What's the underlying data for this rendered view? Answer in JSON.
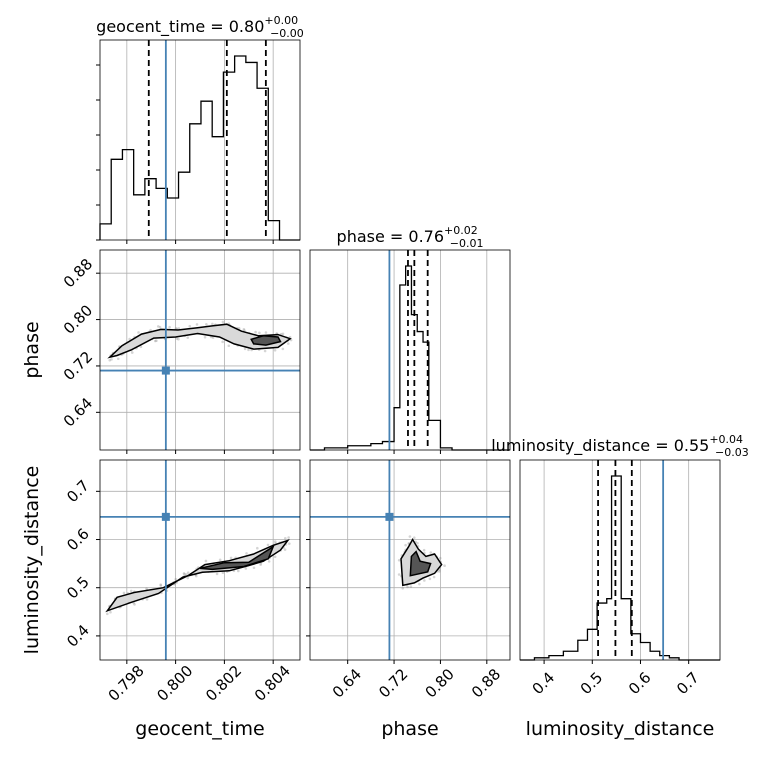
{
  "chart_data": {
    "type": "corner",
    "parameters": [
      "geocent_time",
      "phase",
      "luminosity_distance"
    ],
    "axis_labels": {
      "x": [
        "geocent_time",
        "phase",
        "luminosity_distance"
      ],
      "y_row1": "phase",
      "y_row2": "luminosity_distance"
    },
    "titles": [
      {
        "param": "geocent_time",
        "prefix": "geocent_time = ",
        "median": "0.80",
        "plus": "+0.00",
        "minus": "−0.00"
      },
      {
        "param": "phase",
        "prefix": "phase = ",
        "median": "0.76",
        "plus": "+0.02",
        "minus": "−0.01"
      },
      {
        "param": "luminosity_distance",
        "prefix": "luminosity_distance = ",
        "median": "0.55",
        "plus": "+0.04",
        "minus": "−0.03"
      }
    ],
    "ranges": {
      "geocent_time": [
        0.7969,
        0.8051
      ],
      "phase": [
        0.575,
        0.92
      ],
      "luminosity_distance": [
        0.35,
        0.765
      ]
    },
    "ticks": {
      "geocent_time": {
        "values": [
          0.798,
          0.8,
          0.802,
          0.804
        ],
        "labels": [
          "0.798",
          "0.800",
          "0.802",
          "0.804"
        ]
      },
      "phase": {
        "values": [
          0.64,
          0.72,
          0.8,
          0.88
        ],
        "labels": [
          "0.64",
          "0.72",
          "0.80",
          "0.88"
        ]
      },
      "luminosity_distance_y": {
        "values": [
          0.4,
          0.5,
          0.6,
          0.7
        ],
        "labels": [
          "0.4",
          "0.5",
          "0.6",
          "0.7"
        ]
      },
      "luminosity_distance_x": {
        "values": [
          0.4,
          0.5,
          0.6,
          0.7
        ],
        "labels": [
          "0.4",
          "0.5",
          "0.6",
          "0.7"
        ]
      }
    },
    "truths": {
      "geocent_time": 0.7996,
      "phase": 0.712,
      "luminosity_distance": 0.647
    },
    "quantiles": {
      "geocent_time": [
        0.7989,
        0.8021,
        0.8037
      ],
      "phase": [
        0.744,
        0.755,
        0.778
      ],
      "luminosity_distance": [
        0.512,
        0.548,
        0.582
      ]
    },
    "histograms": {
      "geocent_time": {
        "edges": [
          0.7969,
          0.79736,
          0.79782,
          0.79828,
          0.79874,
          0.7992,
          0.79966,
          0.80012,
          0.80058,
          0.80104,
          0.8015,
          0.80196,
          0.80242,
          0.80288,
          0.80334,
          0.8038,
          0.80426,
          0.8051
        ],
        "counts": [
          5,
          25,
          28,
          14,
          19,
          16,
          13,
          21,
          36,
          43,
          32,
          52,
          57,
          55,
          47,
          6,
          0
        ]
      },
      "phase": {
        "edges": [
          0.575,
          0.6,
          0.62,
          0.64,
          0.66,
          0.68,
          0.7,
          0.72,
          0.73,
          0.74,
          0.75,
          0.76,
          0.77,
          0.78,
          0.79,
          0.8,
          0.82,
          0.84,
          0.92
        ],
        "counts": [
          0,
          1,
          1,
          2,
          2,
          3,
          4,
          20,
          78,
          87,
          64,
          56,
          51,
          14,
          14,
          1,
          0,
          0
        ]
      },
      "luminosity_distance": {
        "edges": [
          0.35,
          0.38,
          0.41,
          0.44,
          0.47,
          0.49,
          0.51,
          0.53,
          0.54,
          0.56,
          0.58,
          0.6,
          0.62,
          0.64,
          0.66,
          0.68,
          0.7,
          0.72,
          0.765
        ],
        "counts": [
          0,
          1,
          2,
          4,
          9,
          14,
          26,
          28,
          84,
          28,
          12,
          8,
          4,
          2,
          1,
          0,
          0,
          0
        ]
      }
    },
    "contours_2d": {
      "phase_vs_geocent_time": {
        "outer": [
          [
            0.7973,
            0.735
          ],
          [
            0.7978,
            0.755
          ],
          [
            0.7986,
            0.775
          ],
          [
            0.7994,
            0.783
          ],
          [
            0.8001,
            0.782
          ],
          [
            0.8009,
            0.786
          ],
          [
            0.8015,
            0.789
          ],
          [
            0.8021,
            0.792
          ],
          [
            0.8027,
            0.78
          ],
          [
            0.8034,
            0.772
          ],
          [
            0.8042,
            0.774
          ],
          [
            0.8047,
            0.767
          ],
          [
            0.8042,
            0.752
          ],
          [
            0.8032,
            0.749
          ],
          [
            0.8024,
            0.758
          ],
          [
            0.8018,
            0.77
          ],
          [
            0.8009,
            0.776
          ],
          [
            0.8,
            0.77
          ],
          [
            0.7991,
            0.768
          ],
          [
            0.7982,
            0.748
          ],
          [
            0.7976,
            0.738
          ],
          [
            0.7973,
            0.735
          ]
        ],
        "inner": [
          [
            0.8031,
            0.766
          ],
          [
            0.8036,
            0.772
          ],
          [
            0.8042,
            0.77
          ],
          [
            0.8043,
            0.762
          ],
          [
            0.8037,
            0.756
          ],
          [
            0.8032,
            0.758
          ],
          [
            0.8031,
            0.766
          ]
        ]
      },
      "luminosity_distance_vs_geocent_time": {
        "outer": [
          [
            0.7972,
            0.452
          ],
          [
            0.7976,
            0.48
          ],
          [
            0.7983,
            0.49
          ],
          [
            0.7995,
            0.5
          ],
          [
            0.8005,
            0.525
          ],
          [
            0.8012,
            0.548
          ],
          [
            0.8022,
            0.556
          ],
          [
            0.8032,
            0.57
          ],
          [
            0.804,
            0.588
          ],
          [
            0.8046,
            0.598
          ],
          [
            0.8043,
            0.578
          ],
          [
            0.8036,
            0.555
          ],
          [
            0.803,
            0.546
          ],
          [
            0.8022,
            0.535
          ],
          [
            0.8011,
            0.532
          ],
          [
            0.8003,
            0.522
          ],
          [
            0.7993,
            0.488
          ],
          [
            0.7982,
            0.47
          ],
          [
            0.7972,
            0.452
          ]
        ],
        "inner": [
          [
            0.801,
            0.54
          ],
          [
            0.802,
            0.552
          ],
          [
            0.803,
            0.553
          ],
          [
            0.804,
            0.585
          ],
          [
            0.8038,
            0.56
          ],
          [
            0.8028,
            0.544
          ],
          [
            0.8015,
            0.538
          ],
          [
            0.801,
            0.54
          ]
        ]
      },
      "luminosity_distance_vs_phase": {
        "outer": [
          [
            0.735,
            0.505
          ],
          [
            0.732,
            0.56
          ],
          [
            0.745,
            0.585
          ],
          [
            0.752,
            0.6
          ],
          [
            0.762,
            0.58
          ],
          [
            0.775,
            0.565
          ],
          [
            0.79,
            0.57
          ],
          [
            0.802,
            0.548
          ],
          [
            0.79,
            0.53
          ],
          [
            0.77,
            0.52
          ],
          [
            0.755,
            0.51
          ],
          [
            0.735,
            0.505
          ]
        ],
        "inner": [
          [
            0.748,
            0.525
          ],
          [
            0.75,
            0.565
          ],
          [
            0.758,
            0.575
          ],
          [
            0.765,
            0.555
          ],
          [
            0.783,
            0.55
          ],
          [
            0.778,
            0.533
          ],
          [
            0.76,
            0.528
          ],
          [
            0.748,
            0.525
          ]
        ]
      }
    },
    "grid": true,
    "colors": {
      "truth": "#4682b4",
      "hist": "#000000",
      "quantile": "#000000",
      "scatter": "#888888",
      "grid": "#b0b0b0"
    }
  }
}
